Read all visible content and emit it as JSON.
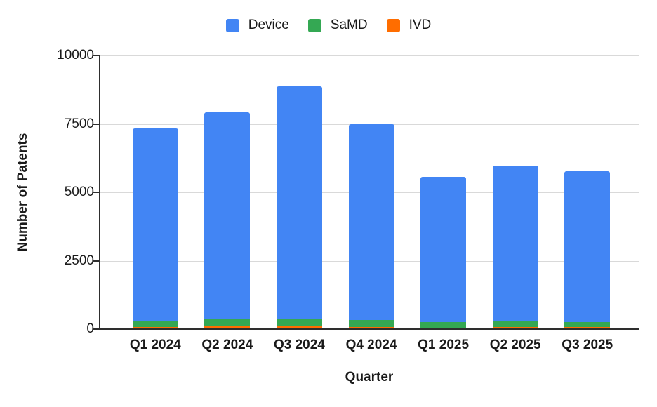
{
  "chart_data": {
    "type": "bar",
    "stacked": true,
    "title": "",
    "xlabel": "Quarter",
    "ylabel": "Number of Patents",
    "ylim": [
      0,
      10000
    ],
    "yticks": [
      0,
      2500,
      5000,
      7500,
      10000
    ],
    "grid": true,
    "legend_position": "top",
    "categories": [
      "Q1 2024",
      "Q2 2024",
      "Q3 2024",
      "Q4 2024",
      "Q1 2025",
      "Q2 2025",
      "Q3 2025"
    ],
    "series": [
      {
        "name": "Device",
        "color": "#4285F4",
        "values": [
          7050,
          7570,
          8500,
          7170,
          5310,
          5700,
          5520
        ]
      },
      {
        "name": "SaMD",
        "color": "#34A853",
        "values": [
          200,
          250,
          240,
          250,
          190,
          190,
          190
        ]
      },
      {
        "name": "IVD",
        "color": "#FF6D00",
        "values": [
          80,
          100,
          130,
          80,
          60,
          80,
          70
        ]
      }
    ],
    "stack_order_bottom_to_top": [
      "IVD",
      "SaMD",
      "Device"
    ]
  },
  "colors": {
    "background": "#ffffff",
    "gridline": "#d9d9d9",
    "axis_line": "#2e2e2e",
    "text": "#1a1a1a"
  }
}
